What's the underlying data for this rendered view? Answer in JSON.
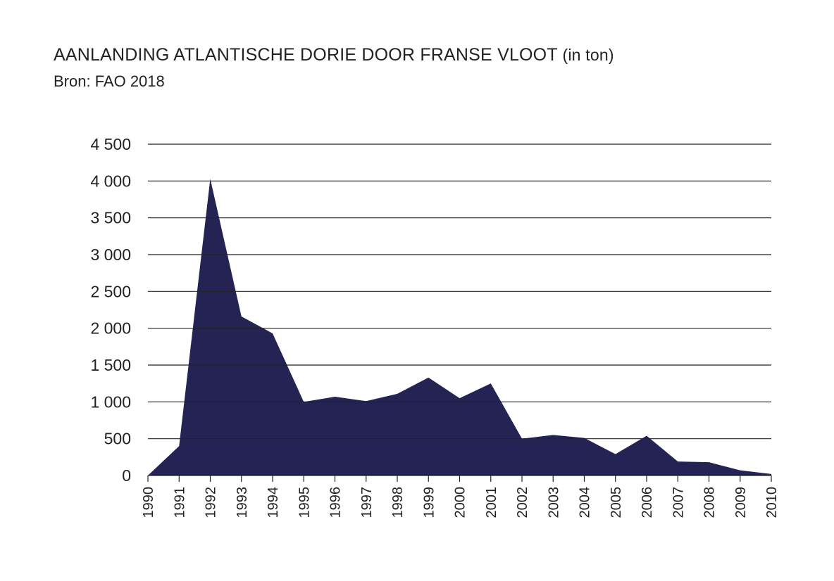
{
  "title": {
    "main": "AANLANDING ATLANTISCHE DORIE DOOR FRANSE VLOOT",
    "unit": "(in ton)"
  },
  "subtitle": "Bron: FAO 2018",
  "colors": {
    "area": "#252354",
    "grid": "#222222",
    "text": "#222222"
  },
  "chart_data": {
    "type": "area",
    "title": "AANLANDING ATLANTISCHE DORIE DOOR FRANSE VLOOT (in ton)",
    "subtitle": "Bron: FAO 2018",
    "xlabel": "",
    "ylabel": "",
    "ylim": [
      0,
      4500
    ],
    "yticks": [
      0,
      500,
      1000,
      1500,
      2000,
      2500,
      3000,
      3500,
      4000,
      4500
    ],
    "ytick_labels": [
      "0",
      "500",
      "1 000",
      "1 500",
      "2 000",
      "2 500",
      "3 000",
      "3 500",
      "4 000",
      "4 500"
    ],
    "grid": "horizontal",
    "x": [
      "1990",
      "1991",
      "1992",
      "1993",
      "1994",
      "1995",
      "1996",
      "1997",
      "1998",
      "1999",
      "2000",
      "2001",
      "2002",
      "2003",
      "2004",
      "2005",
      "2006",
      "2007",
      "2008",
      "2009",
      "2010"
    ],
    "values": [
      0,
      400,
      4030,
      2160,
      1930,
      1000,
      1070,
      1010,
      1110,
      1330,
      1050,
      1250,
      500,
      550,
      510,
      290,
      540,
      190,
      180,
      70,
      20
    ]
  }
}
